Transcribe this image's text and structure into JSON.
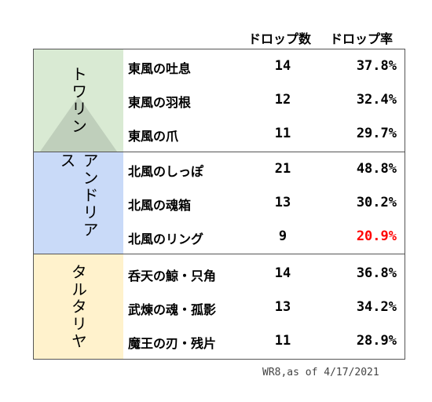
{
  "header": {
    "count_label": "ドロップ数",
    "rate_label": "ドロップ率"
  },
  "groups": [
    {
      "label": "トワリン",
      "rows": [
        {
          "name": "東風の吐息",
          "count": "14",
          "rate": "37.8%"
        },
        {
          "name": "東風の羽根",
          "count": "12",
          "rate": "32.4%"
        },
        {
          "name": "東風の爪",
          "count": "11",
          "rate": "29.7%"
        }
      ]
    },
    {
      "label": "アンドリアス",
      "rows": [
        {
          "name": "北風のしっぽ",
          "count": "21",
          "rate": "48.8%"
        },
        {
          "name": "北風の魂箱",
          "count": "13",
          "rate": "30.2%"
        },
        {
          "name": "北風のリング",
          "count": "9",
          "rate": "20.9%",
          "highlight": true
        }
      ]
    },
    {
      "label": "タルタリヤ",
      "rows": [
        {
          "name": "呑天の鯨・只角",
          "count": "14",
          "rate": "36.8%"
        },
        {
          "name": "武煉の魂・孤影",
          "count": "13",
          "rate": "34.2%"
        },
        {
          "name": "魔王の刃・残片",
          "count": "11",
          "rate": "28.9%"
        }
      ]
    }
  ],
  "colors": {
    "group_0_bg": "#d9ead3",
    "group_1_bg": "#c9daf8",
    "group_2_bg": "#fff2cc",
    "highlight": "#ff0000"
  },
  "footnote": "WR8,as of 4/17/2021"
}
